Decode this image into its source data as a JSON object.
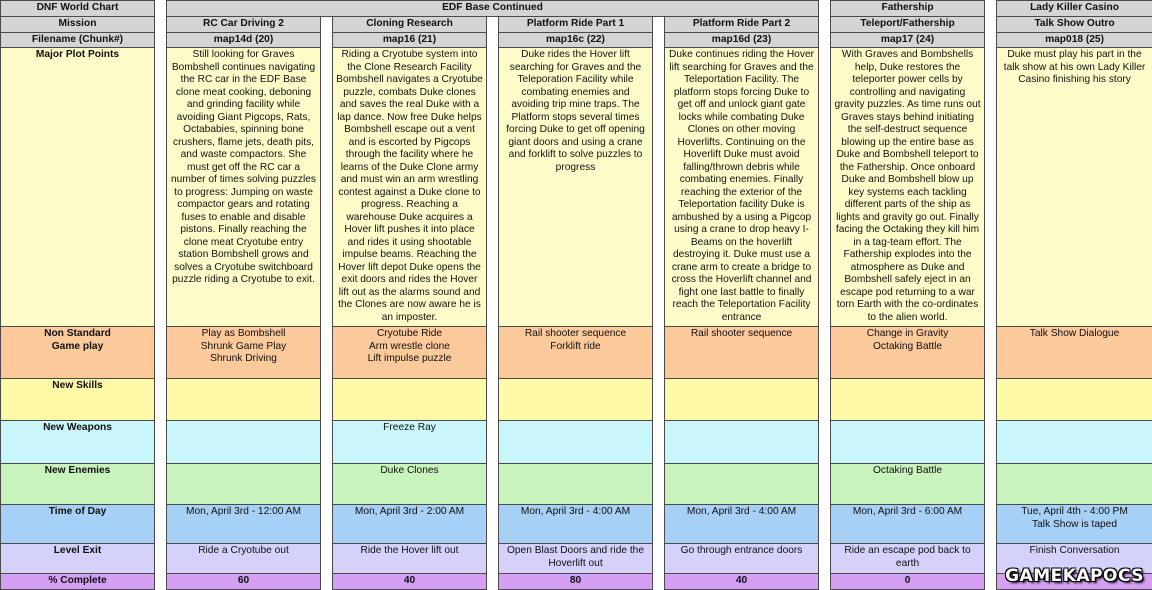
{
  "sheet": {
    "title_cell": "DNF World Chart",
    "group_headers": {
      "edf": "EDF Base Continued",
      "fathership": "Fathership",
      "lady_killer": "Lady Killer Casino"
    },
    "row_labels": {
      "mission": "Mission",
      "filename": "Filename (Chunk#)",
      "plot": "Major Plot Points",
      "nonstd": "Non Standard\nGame play",
      "skills": "New Skills",
      "weapons": "New Weapons",
      "enemies": "New Enemies",
      "time": "Time of Day",
      "exit": "Level Exit",
      "pct": "% Complete"
    },
    "columns": [
      {
        "mission": "RC Car Driving 2",
        "filename": "map14d  (20)",
        "plot": "Still looking for Graves Bombshell continues navigating the RC car in the EDF Base clone meat cooking, deboning and grinding facility while avoiding Giant Pigcops, Rats, Octababies, spinning bone crushers, flame jets, death pits, and waste compactors. She must get off the RC car a number of times solving puzzles to progress: Jumping on waste compactor gears and rotating fuses to enable and disable pistons. Finally reaching the clone meat Cryotube entry station Bombshell grows and solves a Cryotube switchboard puzzle riding a Cryotube to exit.",
        "nonstd": "Play as Bombshell\nShrunk Game Play\nShrunk Driving",
        "skills": "",
        "weapons": "",
        "enemies": "",
        "time": "Mon, April 3rd - 12:00 AM",
        "exit": "Ride a Cryotube out",
        "pct": "60"
      },
      {
        "mission": "Cloning Research",
        "filename": "map16  (21)",
        "plot": "Riding a Cryotube system into the Clone Research Facility Bombshell navigates a Cryotube puzzle, combats Duke clones and saves the real Duke with a lap dance. Now free Duke helps Bombshell escape out a vent and is escorted by Pigcops through the facility where he learns of the Duke Clone army and must win an arm wrestling contest against a Duke clone to progress. Reaching a warehouse Duke acquires a Hover lift pushes it into place and rides it using shootable impulse beams. Reaching the Hover lift depot Duke opens the exit doors and rides the Hover lift out as the alarms sound and the Clones are now aware he is an imposter.",
        "nonstd": "Cryotube Ride\nArm wrestle clone\nLift impulse puzzle",
        "skills": "",
        "weapons": "Freeze Ray",
        "enemies": "Duke Clones",
        "time": "Mon, April 3rd - 2:00 AM",
        "exit": "Ride the Hover lift out",
        "pct": "40"
      },
      {
        "mission": "Platform Ride Part 1",
        "filename": "map16c  (22)",
        "plot": "Duke rides the Hover lift searching for Graves and the Teleporation Facility while combating enemies and avoiding trip mine traps. The Platform stops several times forcing Duke to get off opening giant doors and using a crane and forklift to solve puzzles to progress",
        "nonstd": "Rail shooter sequence\nForklift ride",
        "skills": "",
        "weapons": "",
        "enemies": "",
        "time": "Mon, April 3rd - 4:00 AM",
        "exit": "Open Blast Doors and ride the Hoverlift out",
        "pct": "80"
      },
      {
        "mission": "Platform Ride Part 2",
        "filename": "map16d  (23)",
        "plot": "Duke continues riding the Hover lift searching for Graves and the Teleportation Facility. The platform stops forcing Duke to get off and unlock giant gate locks while combating Duke Clones on other moving Hoverlifts. Continuing on the Hoverlift Duke must avoid falling/thrown debris while combating enemies. Finally reaching the exterior of the Teleportation facility Duke is ambushed by a using a Pigcop using a crane to drop heavy I-Beams on the hoverlift destroying it. Duke must use a crane arm to create a bridge to cross the Hoverlift channel and fight one last battle to finally reach the Teleportation Facility entrance",
        "nonstd": "Rail shooter sequence",
        "skills": "",
        "weapons": "",
        "enemies": "",
        "time": "Mon, April 3rd - 4:00 AM",
        "exit": "Go through entrance doors",
        "pct": "40"
      },
      {
        "mission": "Teleport/Fathership",
        "filename": "map17  (24)",
        "plot": "With Graves and Bombshells help, Duke restores the teleporter power cells by controlling and navigating gravity puzzles. As time runs out Graves stays behind initiating the self-destruct sequence blowing up the entire base as Duke and Bombshell teleport to the Fathership. Once onboard Duke and Bombshell blow up key systems each tackling different parts of the ship as lights and gravity go out. Finally facing the Octaking they kill him in a tag-team effort. The Fathership explodes into the atmosphere as Duke and Bombshell safely eject in an escape pod returning to a war torn Earth with the co-ordinates to the alien world.",
        "nonstd": "Change in Gravity\nOctaking Battle",
        "skills": "",
        "weapons": "",
        "enemies": "Octaking Battle",
        "time": "Mon, April 3rd - 6:00 AM",
        "exit": "Ride an escape pod back to earth",
        "pct": "0"
      },
      {
        "mission": "Talk Show Outro",
        "filename": "map018  (25)",
        "plot": "Duke must play his part in the talk show at his own Lady Killer Casino finishing his story",
        "nonstd": "Talk Show Dialogue",
        "skills": "",
        "weapons": "",
        "enemies": "",
        "time": "Tue, April 4th - 4:00 PM\nTalk Show is taped",
        "exit": "Finish Conversation",
        "pct": ""
      }
    ]
  },
  "watermark": "GAMEKAPOCS"
}
